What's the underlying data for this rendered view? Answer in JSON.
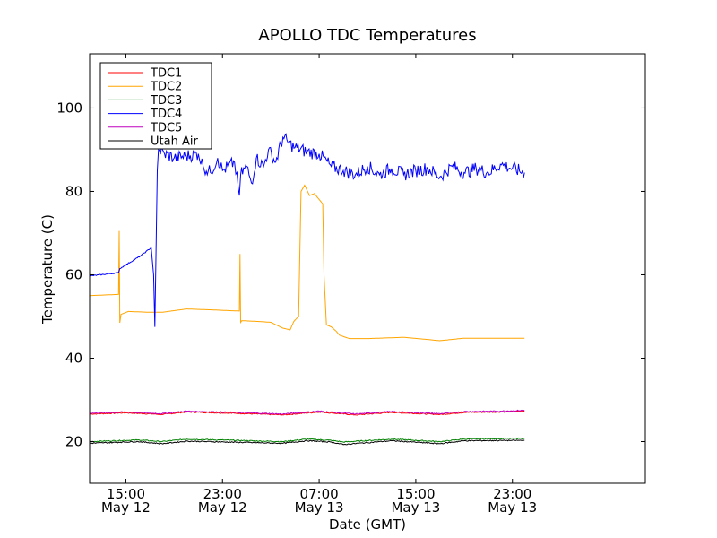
{
  "chart_data": {
    "type": "line",
    "title": "APOLLO TDC Temperatures",
    "xlabel": "Date (GMT)",
    "ylabel": "Temperature (C)",
    "xlim": [
      12.0,
      58.0
    ],
    "ylim": [
      10,
      113
    ],
    "x_units": "hours since May 12 00:00 GMT",
    "yticks": [
      20,
      40,
      60,
      80,
      100
    ],
    "xticks": [
      {
        "x": 15,
        "time": "15:00",
        "date": "May 12"
      },
      {
        "x": 23,
        "time": "23:00",
        "date": "May 12"
      },
      {
        "x": 31,
        "time": "07:00",
        "date": "May 13"
      },
      {
        "x": 39,
        "time": "15:00",
        "date": "May 13"
      },
      {
        "x": 47,
        "time": "23:00",
        "date": "May 13"
      }
    ],
    "legend_position": "top-left",
    "series": [
      {
        "name": "TDC1",
        "color": "#ff0000",
        "x": [
          12.0,
          15.0,
          18.0,
          20.0,
          24.0,
          28.0,
          31.0,
          34.0,
          37.0,
          41.0,
          43.0,
          46.0,
          48.0
        ],
        "y": [
          26.6,
          26.9,
          26.5,
          27.1,
          26.8,
          26.4,
          27.1,
          26.4,
          27.0,
          26.5,
          27.0,
          27.1,
          27.3
        ]
      },
      {
        "name": "TDC2",
        "color": "#ffa500",
        "x": [
          12.0,
          14.4,
          14.45,
          14.5,
          14.6,
          15.2,
          17.0,
          18.0,
          20.0,
          22.0,
          24.4,
          24.45,
          24.5,
          24.6,
          26.0,
          27.0,
          28.0,
          28.6,
          28.9,
          29.3,
          29.5,
          29.8,
          30.2,
          30.6,
          31.3,
          31.4,
          31.6,
          32.0,
          32.4,
          32.7,
          33.5,
          35.0,
          38.0,
          41.0,
          43.0,
          48.0
        ],
        "y": [
          55.0,
          55.3,
          70.5,
          48.5,
          50.5,
          51.2,
          51.0,
          51.0,
          51.8,
          51.6,
          51.3,
          65.0,
          48.6,
          49.0,
          48.8,
          48.6,
          47.2,
          46.8,
          48.8,
          50.0,
          80.0,
          81.5,
          79.0,
          79.5,
          77.0,
          60.0,
          48.0,
          47.5,
          46.5,
          45.5,
          44.7,
          44.7,
          45.0,
          44.2,
          44.8,
          44.8
        ]
      },
      {
        "name": "TDC3",
        "color": "#008000",
        "x": [
          12.0,
          16.0,
          18.0,
          20.0,
          28.0,
          30.0,
          32.0,
          33.0,
          37.0,
          41.0,
          43.0,
          48.0
        ],
        "y": [
          20.0,
          20.4,
          20.0,
          20.6,
          20.0,
          20.6,
          20.3,
          19.9,
          20.6,
          20.0,
          20.6,
          20.8
        ]
      },
      {
        "name": "TDC4",
        "color": "#0000ff",
        "x": [
          12.0,
          14.4,
          14.5,
          16.2,
          17.1,
          17.3,
          17.4,
          17.6,
          17.7,
          18.2,
          19.0,
          20.0,
          21.0,
          21.4,
          22.0,
          22.6,
          23.0,
          24.0,
          24.4,
          24.5,
          25.0,
          25.4,
          25.8,
          26.4,
          26.8,
          27.4,
          28.0,
          28.5,
          29.0,
          30.0,
          31.0,
          32.0,
          33.0,
          34.0,
          35.0,
          36.0,
          37.0,
          38.0,
          39.0,
          40.0,
          41.0,
          42.0,
          43.0,
          44.0,
          45.0,
          46.0,
          47.0,
          48.0
        ],
        "y": [
          59.7,
          60.5,
          61.5,
          64.5,
          66.5,
          60.0,
          47.5,
          85.0,
          90.0,
          89.0,
          88.0,
          88.5,
          89.0,
          86.0,
          84.5,
          88.0,
          85.0,
          87.0,
          79.0,
          84.0,
          86.0,
          82.0,
          88.0,
          86.0,
          90.0,
          87.0,
          93.0,
          91.5,
          90.5,
          89.5,
          89.0,
          86.0,
          85.0,
          84.0,
          86.0,
          84.0,
          85.5,
          84.0,
          85.0,
          85.5,
          83.5,
          86.0,
          84.5,
          85.5,
          84.5,
          86.5,
          85.5,
          84.5
        ]
      },
      {
        "name": "TDC5",
        "color": "#bf00bf",
        "x": [
          12.0,
          15.0,
          18.0,
          20.0,
          24.0,
          28.0,
          31.0,
          34.0,
          37.0,
          41.0,
          43.0,
          46.0,
          48.0
        ],
        "y": [
          26.8,
          27.1,
          26.7,
          27.3,
          27.0,
          26.6,
          27.3,
          26.6,
          27.2,
          26.7,
          27.2,
          27.3,
          27.5
        ]
      },
      {
        "name": "Utah Air",
        "color": "#000000",
        "x": [
          12.0,
          16.0,
          18.0,
          20.0,
          28.0,
          30.0,
          32.0,
          33.0,
          37.0,
          41.0,
          43.0,
          48.0
        ],
        "y": [
          19.6,
          20.0,
          19.5,
          20.1,
          19.6,
          20.2,
          19.9,
          19.3,
          20.2,
          19.5,
          20.2,
          20.3
        ]
      }
    ]
  }
}
